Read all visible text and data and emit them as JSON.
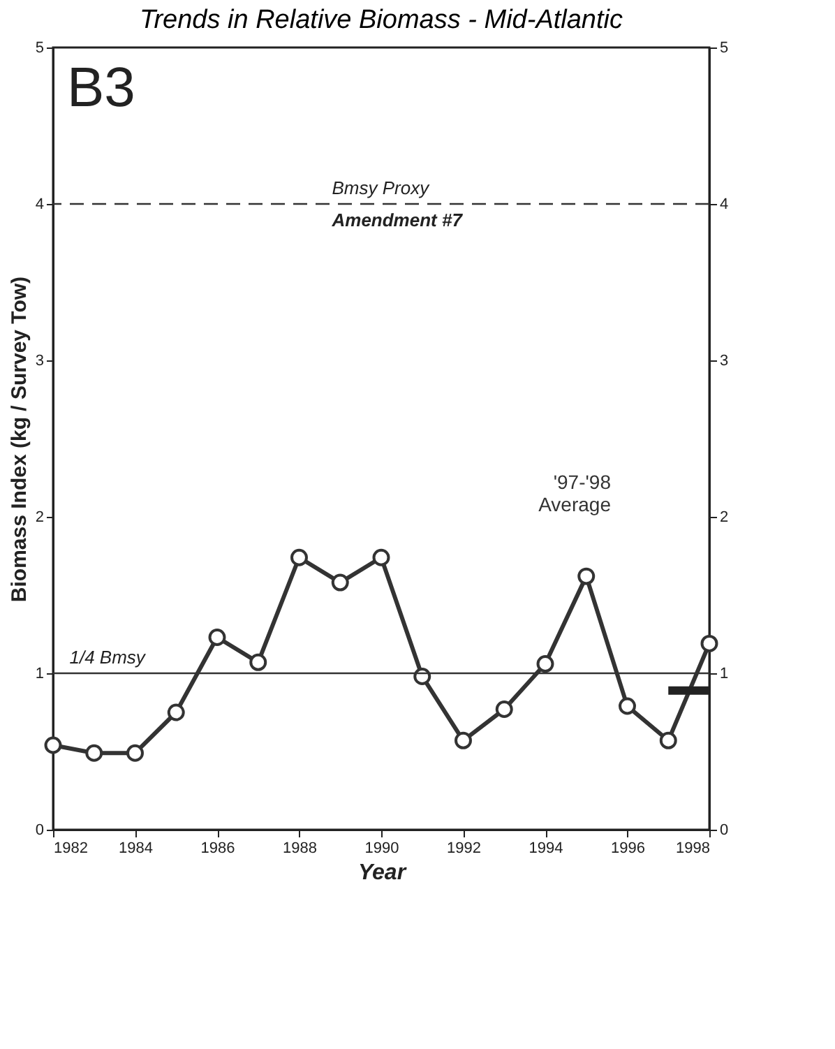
{
  "chart_data": {
    "type": "line",
    "title": "Trends in Relative Biomass - Mid-Atlantic",
    "xlabel": "Year",
    "ylabel": "Biomass Index (kg / Survey Tow)",
    "x": [
      1982,
      1983,
      1984,
      1985,
      1986,
      1987,
      1988,
      1989,
      1990,
      1991,
      1992,
      1993,
      1994,
      1995,
      1996,
      1997,
      1998
    ],
    "series": [
      {
        "color": "#333333",
        "marker": "circle",
        "values": [
          0.54,
          0.49,
          0.49,
          0.75,
          1.23,
          1.07,
          1.74,
          1.58,
          1.74,
          0.98,
          0.57,
          0.77,
          1.06,
          1.62,
          0.79,
          0.57,
          1.19
        ]
      },
      {
        "type": "line",
        "color": "#222222",
        "marker": "none",
        "x": [
          1997,
          1998
        ],
        "values": [
          0.89,
          0.89
        ]
      }
    ],
    "xlim": [
      1982,
      1998
    ],
    "xticks": [
      1982,
      1984,
      1986,
      1988,
      1990,
      1992,
      1994,
      1996,
      1998
    ],
    "ylim": [
      0,
      5
    ],
    "yticks": [
      0,
      1,
      2,
      3,
      4,
      5
    ],
    "y2lim": [
      0,
      5
    ],
    "y2ticks": [
      0,
      1,
      2,
      3,
      4,
      5
    ],
    "ref_lines": [
      {
        "axis": "y",
        "value": 4,
        "label": "Bmsy Proxy",
        "line_style": "dashed"
      },
      {
        "axis": "y",
        "value": 1,
        "label": "1/4 Bmsy",
        "line_style": "solid"
      }
    ],
    "annotations": [
      "B3",
      "Amendment #7",
      "'97-'98 Average"
    ],
    "grid": false,
    "line_style": "solid"
  }
}
